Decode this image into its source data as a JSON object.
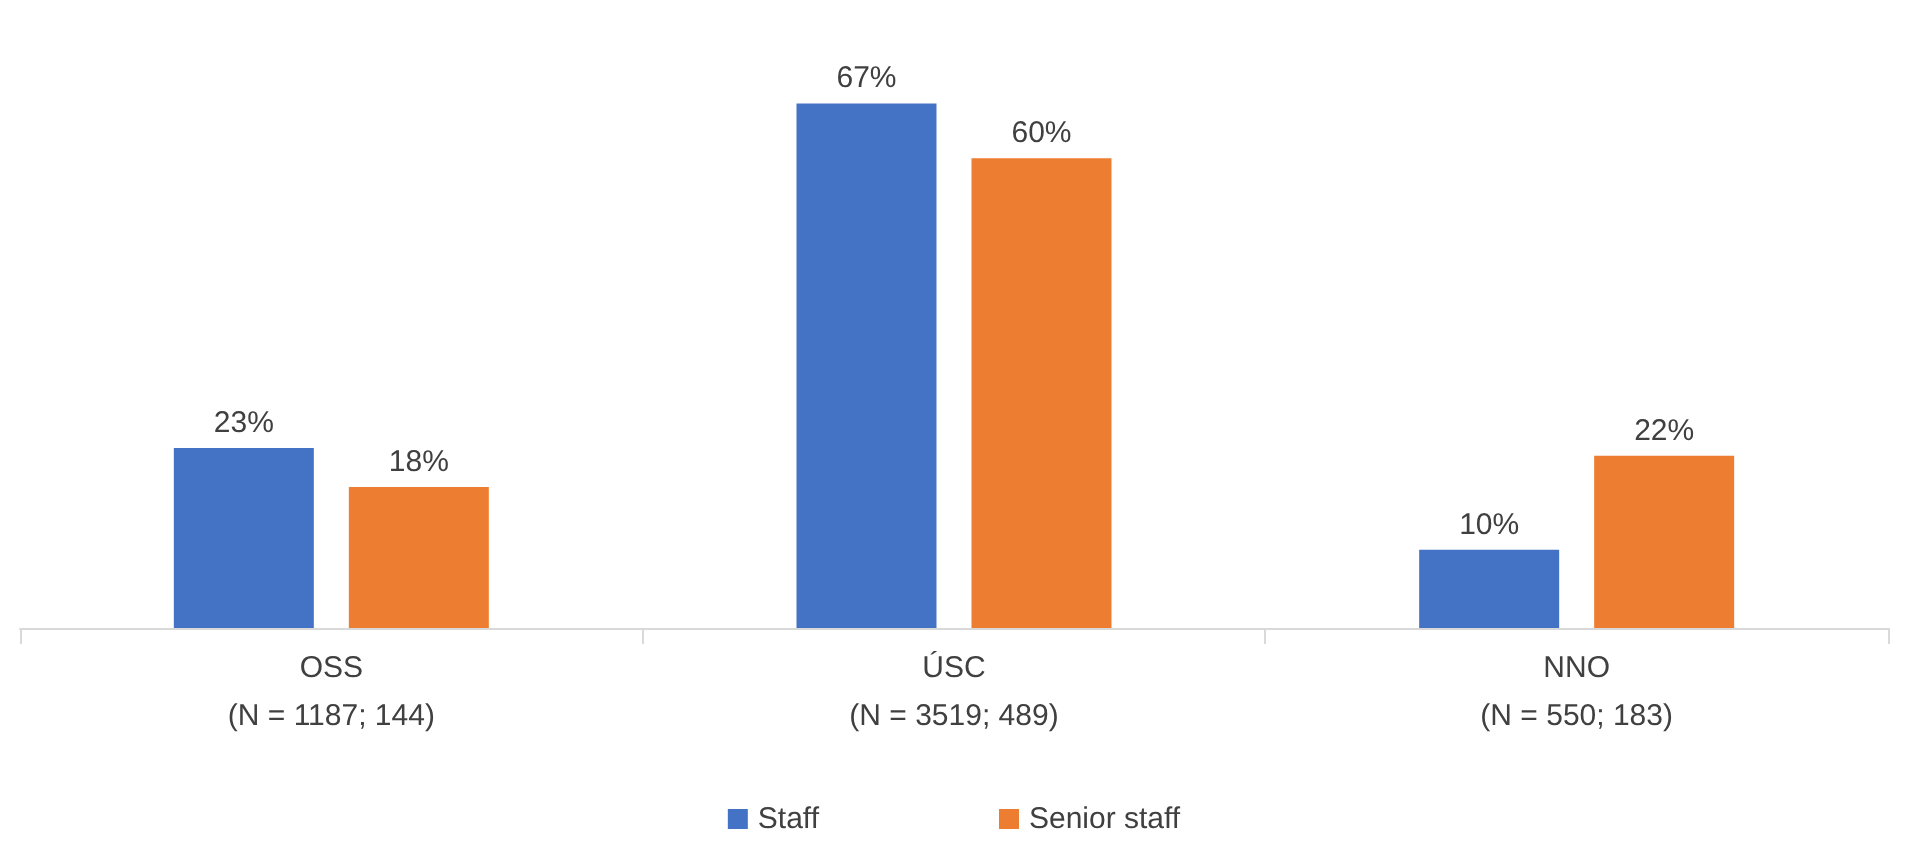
{
  "chart_data": {
    "type": "bar",
    "categories": [
      "OSS\n(N = 1187; 144)",
      "ÚSC\n(N = 3519; 489)",
      "NNO\n(N = 550; 183)"
    ],
    "series": [
      {
        "name": "Staff",
        "color": "#4472c4",
        "values": [
          23,
          67,
          10
        ],
        "value_labels": [
          "23%",
          "67%",
          "10%"
        ]
      },
      {
        "name": "Senior staff",
        "color": "#ed7d31",
        "values": [
          18,
          60,
          22
        ],
        "value_labels": [
          "18%",
          "60%",
          "22%"
        ]
      }
    ],
    "legend": "bottom"
  }
}
